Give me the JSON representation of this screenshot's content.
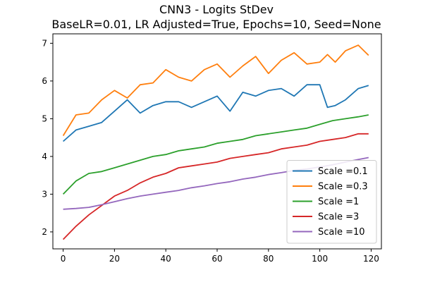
{
  "chart_data": {
    "type": "line",
    "title": "CNN3 - Logits StDev",
    "subtitle": "BaseLR=0.01, LR Adjusted=True, Epochs=10, Seed=None",
    "xlabel": "",
    "ylabel": "",
    "xlim": [
      -4,
      124
    ],
    "ylim": [
      1.55,
      7.25
    ],
    "xticks": [
      0,
      20,
      40,
      60,
      80,
      100,
      120
    ],
    "yticks": [
      2,
      3,
      4,
      5,
      6,
      7
    ],
    "grid": false,
    "legend_position": "lower-right",
    "series": [
      {
        "name": "Scale =0.1",
        "color": "#1f77b4",
        "x": [
          0,
          5,
          10,
          15,
          20,
          25,
          30,
          35,
          40,
          45,
          50,
          55,
          60,
          65,
          70,
          75,
          80,
          85,
          90,
          95,
          100,
          103,
          106,
          110,
          115,
          119
        ],
        "y": [
          4.4,
          4.7,
          4.8,
          4.9,
          5.2,
          5.5,
          5.15,
          5.35,
          5.45,
          5.45,
          5.3,
          5.45,
          5.6,
          5.2,
          5.7,
          5.6,
          5.75,
          5.8,
          5.6,
          5.9,
          5.9,
          5.3,
          5.35,
          5.5,
          5.8,
          5.88
        ]
      },
      {
        "name": "Scale =0.3",
        "color": "#ff7f0e",
        "x": [
          0,
          5,
          10,
          15,
          20,
          25,
          30,
          35,
          40,
          45,
          50,
          55,
          60,
          65,
          70,
          75,
          80,
          85,
          90,
          95,
          100,
          103,
          106,
          110,
          115,
          119
        ],
        "y": [
          4.55,
          5.1,
          5.15,
          5.5,
          5.75,
          5.55,
          5.9,
          5.95,
          6.3,
          6.1,
          6.0,
          6.3,
          6.45,
          6.1,
          6.4,
          6.65,
          6.2,
          6.55,
          6.75,
          6.45,
          6.5,
          6.7,
          6.5,
          6.8,
          6.95,
          6.68
        ]
      },
      {
        "name": "Scale =1",
        "color": "#2ca02c",
        "x": [
          0,
          5,
          10,
          15,
          20,
          25,
          30,
          35,
          40,
          45,
          50,
          55,
          60,
          65,
          70,
          75,
          80,
          85,
          90,
          95,
          100,
          105,
          110,
          115,
          119
        ],
        "y": [
          3.0,
          3.35,
          3.55,
          3.6,
          3.7,
          3.8,
          3.9,
          4.0,
          4.05,
          4.15,
          4.2,
          4.25,
          4.35,
          4.4,
          4.45,
          4.55,
          4.6,
          4.65,
          4.7,
          4.75,
          4.85,
          4.95,
          5.0,
          5.05,
          5.1
        ]
      },
      {
        "name": "Scale =3",
        "color": "#d62728",
        "x": [
          0,
          5,
          10,
          15,
          20,
          25,
          30,
          35,
          40,
          45,
          50,
          55,
          60,
          65,
          70,
          75,
          80,
          85,
          90,
          95,
          100,
          105,
          110,
          115,
          119
        ],
        "y": [
          1.8,
          2.15,
          2.45,
          2.7,
          2.95,
          3.1,
          3.3,
          3.45,
          3.55,
          3.7,
          3.75,
          3.8,
          3.85,
          3.95,
          4.0,
          4.05,
          4.1,
          4.2,
          4.25,
          4.3,
          4.4,
          4.45,
          4.5,
          4.6,
          4.6
        ]
      },
      {
        "name": "Scale =10",
        "color": "#9467bd",
        "x": [
          0,
          5,
          10,
          15,
          20,
          25,
          30,
          35,
          40,
          45,
          50,
          55,
          60,
          65,
          70,
          75,
          80,
          85,
          90,
          95,
          100,
          105,
          110,
          115,
          119
        ],
        "y": [
          2.6,
          2.62,
          2.65,
          2.72,
          2.8,
          2.88,
          2.95,
          3.0,
          3.05,
          3.1,
          3.17,
          3.22,
          3.28,
          3.33,
          3.4,
          3.45,
          3.52,
          3.57,
          3.63,
          3.67,
          3.72,
          3.78,
          3.85,
          3.92,
          3.97
        ]
      }
    ]
  }
}
